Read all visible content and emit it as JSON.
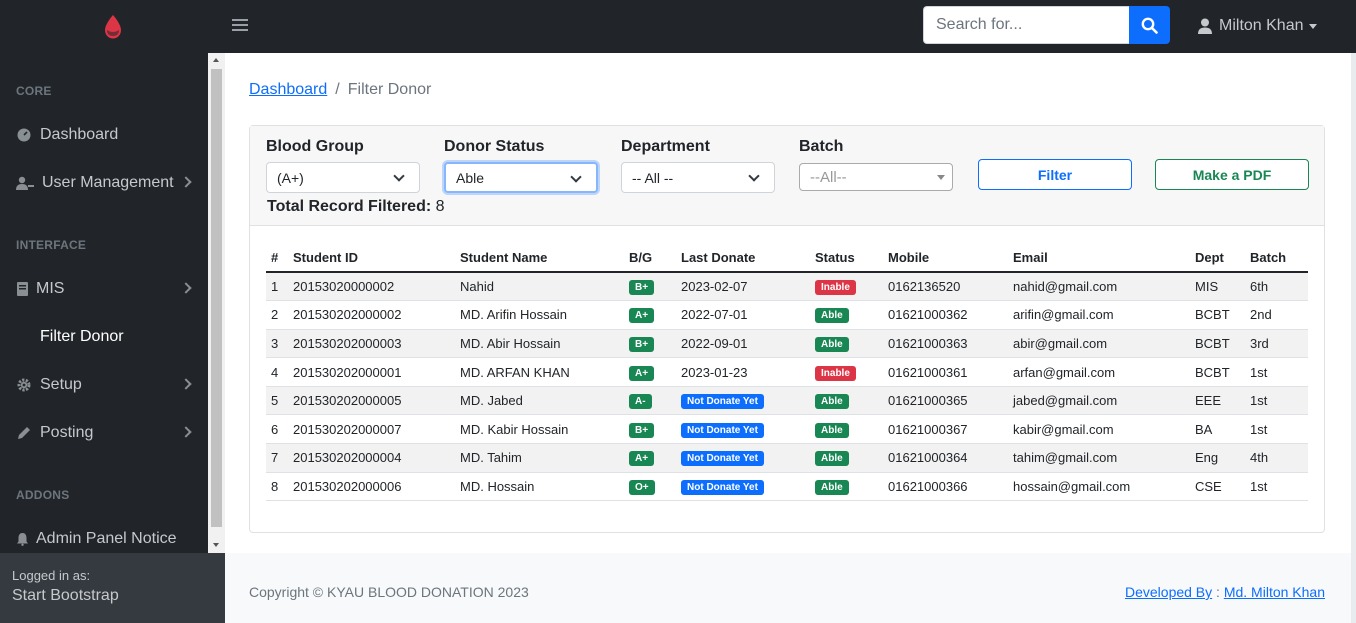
{
  "topbar": {
    "search_placeholder": "Search for...",
    "user_name": "Milton Khan",
    "brand_color": "#dc3545"
  },
  "sidebar": {
    "headings": [
      "CORE",
      "INTERFACE",
      "ADDONS"
    ],
    "items": [
      {
        "label": "Dashboard",
        "icon": "dashboard-icon"
      },
      {
        "label": "User Management",
        "icon": "users-icon"
      },
      {
        "label": "MIS",
        "icon": "book-icon"
      },
      {
        "label": "Filter Donor"
      },
      {
        "label": "Setup",
        "icon": "gear-icon"
      },
      {
        "label": "Posting",
        "icon": "pencil-icon"
      },
      {
        "label": "Admin Panel Notice",
        "icon": "bell-icon"
      }
    ],
    "footer_small": "Logged in as:",
    "footer_name": "Start Bootstrap"
  },
  "breadcrumb": {
    "home": "Dashboard",
    "sep": "/",
    "current": "Filter Donor"
  },
  "filters": {
    "blood_group": {
      "label": "Blood Group",
      "value": "(A+)"
    },
    "donor_status": {
      "label": "Donor Status",
      "value": "Able"
    },
    "department": {
      "label": "Department",
      "value": "-- All --"
    },
    "batch": {
      "label": "Batch",
      "value": "--All--"
    },
    "filter_button": "Filter",
    "pdf_button": "Make a PDF",
    "total_label": "Total Record Filtered:",
    "total_value": "8"
  },
  "table": {
    "headers": [
      "#",
      "Student ID",
      "Student Name",
      "B/G",
      "Last Donate",
      "Status",
      "Mobile",
      "Email",
      "Dept",
      "Batch"
    ],
    "rows": [
      {
        "n": "1",
        "id": "20153020000002",
        "name": "Nahid",
        "bg": "B+",
        "last": "2023-02-07",
        "last_badge": false,
        "status": "Inable",
        "mobile": "0162136520",
        "email": "nahid@gmail.com",
        "dept": "MIS",
        "batch": "6th"
      },
      {
        "n": "2",
        "id": "201530202000002",
        "name": "MD. Arifin Hossain",
        "bg": "A+",
        "last": "2022-07-01",
        "last_badge": false,
        "status": "Able",
        "mobile": "01621000362",
        "email": "arifin@gmail.com",
        "dept": "BCBT",
        "batch": "2nd"
      },
      {
        "n": "3",
        "id": "201530202000003",
        "name": "MD. Abir Hossain",
        "bg": "B+",
        "last": "2022-09-01",
        "last_badge": false,
        "status": "Able",
        "mobile": "01621000363",
        "email": "abir@gmail.com",
        "dept": "BCBT",
        "batch": "3rd"
      },
      {
        "n": "4",
        "id": "201530202000001",
        "name": "MD. ARFAN KHAN",
        "bg": "A+",
        "last": "2023-01-23",
        "last_badge": false,
        "status": "Inable",
        "mobile": "01621000361",
        "email": "arfan@gmail.com",
        "dept": "BCBT",
        "batch": "1st"
      },
      {
        "n": "5",
        "id": "201530202000005",
        "name": "MD. Jabed",
        "bg": "A-",
        "last": "Not Donate Yet",
        "last_badge": true,
        "status": "Able",
        "mobile": "01621000365",
        "email": "jabed@gmail.com",
        "dept": "EEE",
        "batch": "1st"
      },
      {
        "n": "6",
        "id": "201530202000007",
        "name": "MD. Kabir Hossain",
        "bg": "B+",
        "last": "Not Donate Yet",
        "last_badge": true,
        "status": "Able",
        "mobile": "01621000367",
        "email": "kabir@gmail.com",
        "dept": "BA",
        "batch": "1st"
      },
      {
        "n": "7",
        "id": "201530202000004",
        "name": "MD. Tahim",
        "bg": "A+",
        "last": "Not Donate Yet",
        "last_badge": true,
        "status": "Able",
        "mobile": "01621000364",
        "email": "tahim@gmail.com",
        "dept": "Eng",
        "batch": "4th"
      },
      {
        "n": "8",
        "id": "201530202000006",
        "name": "MD. Hossain",
        "bg": "O+",
        "last": "Not Donate Yet",
        "last_badge": true,
        "status": "Able",
        "mobile": "01621000366",
        "email": "hossain@gmail.com",
        "dept": "CSE",
        "batch": "1st"
      }
    ]
  },
  "footer": {
    "copyright": "Copyright © KYAU BLOOD DONATION 2023",
    "dev_label": "Developed By",
    "dev_sep": " : ",
    "dev_name": "Md. Milton Khan"
  }
}
